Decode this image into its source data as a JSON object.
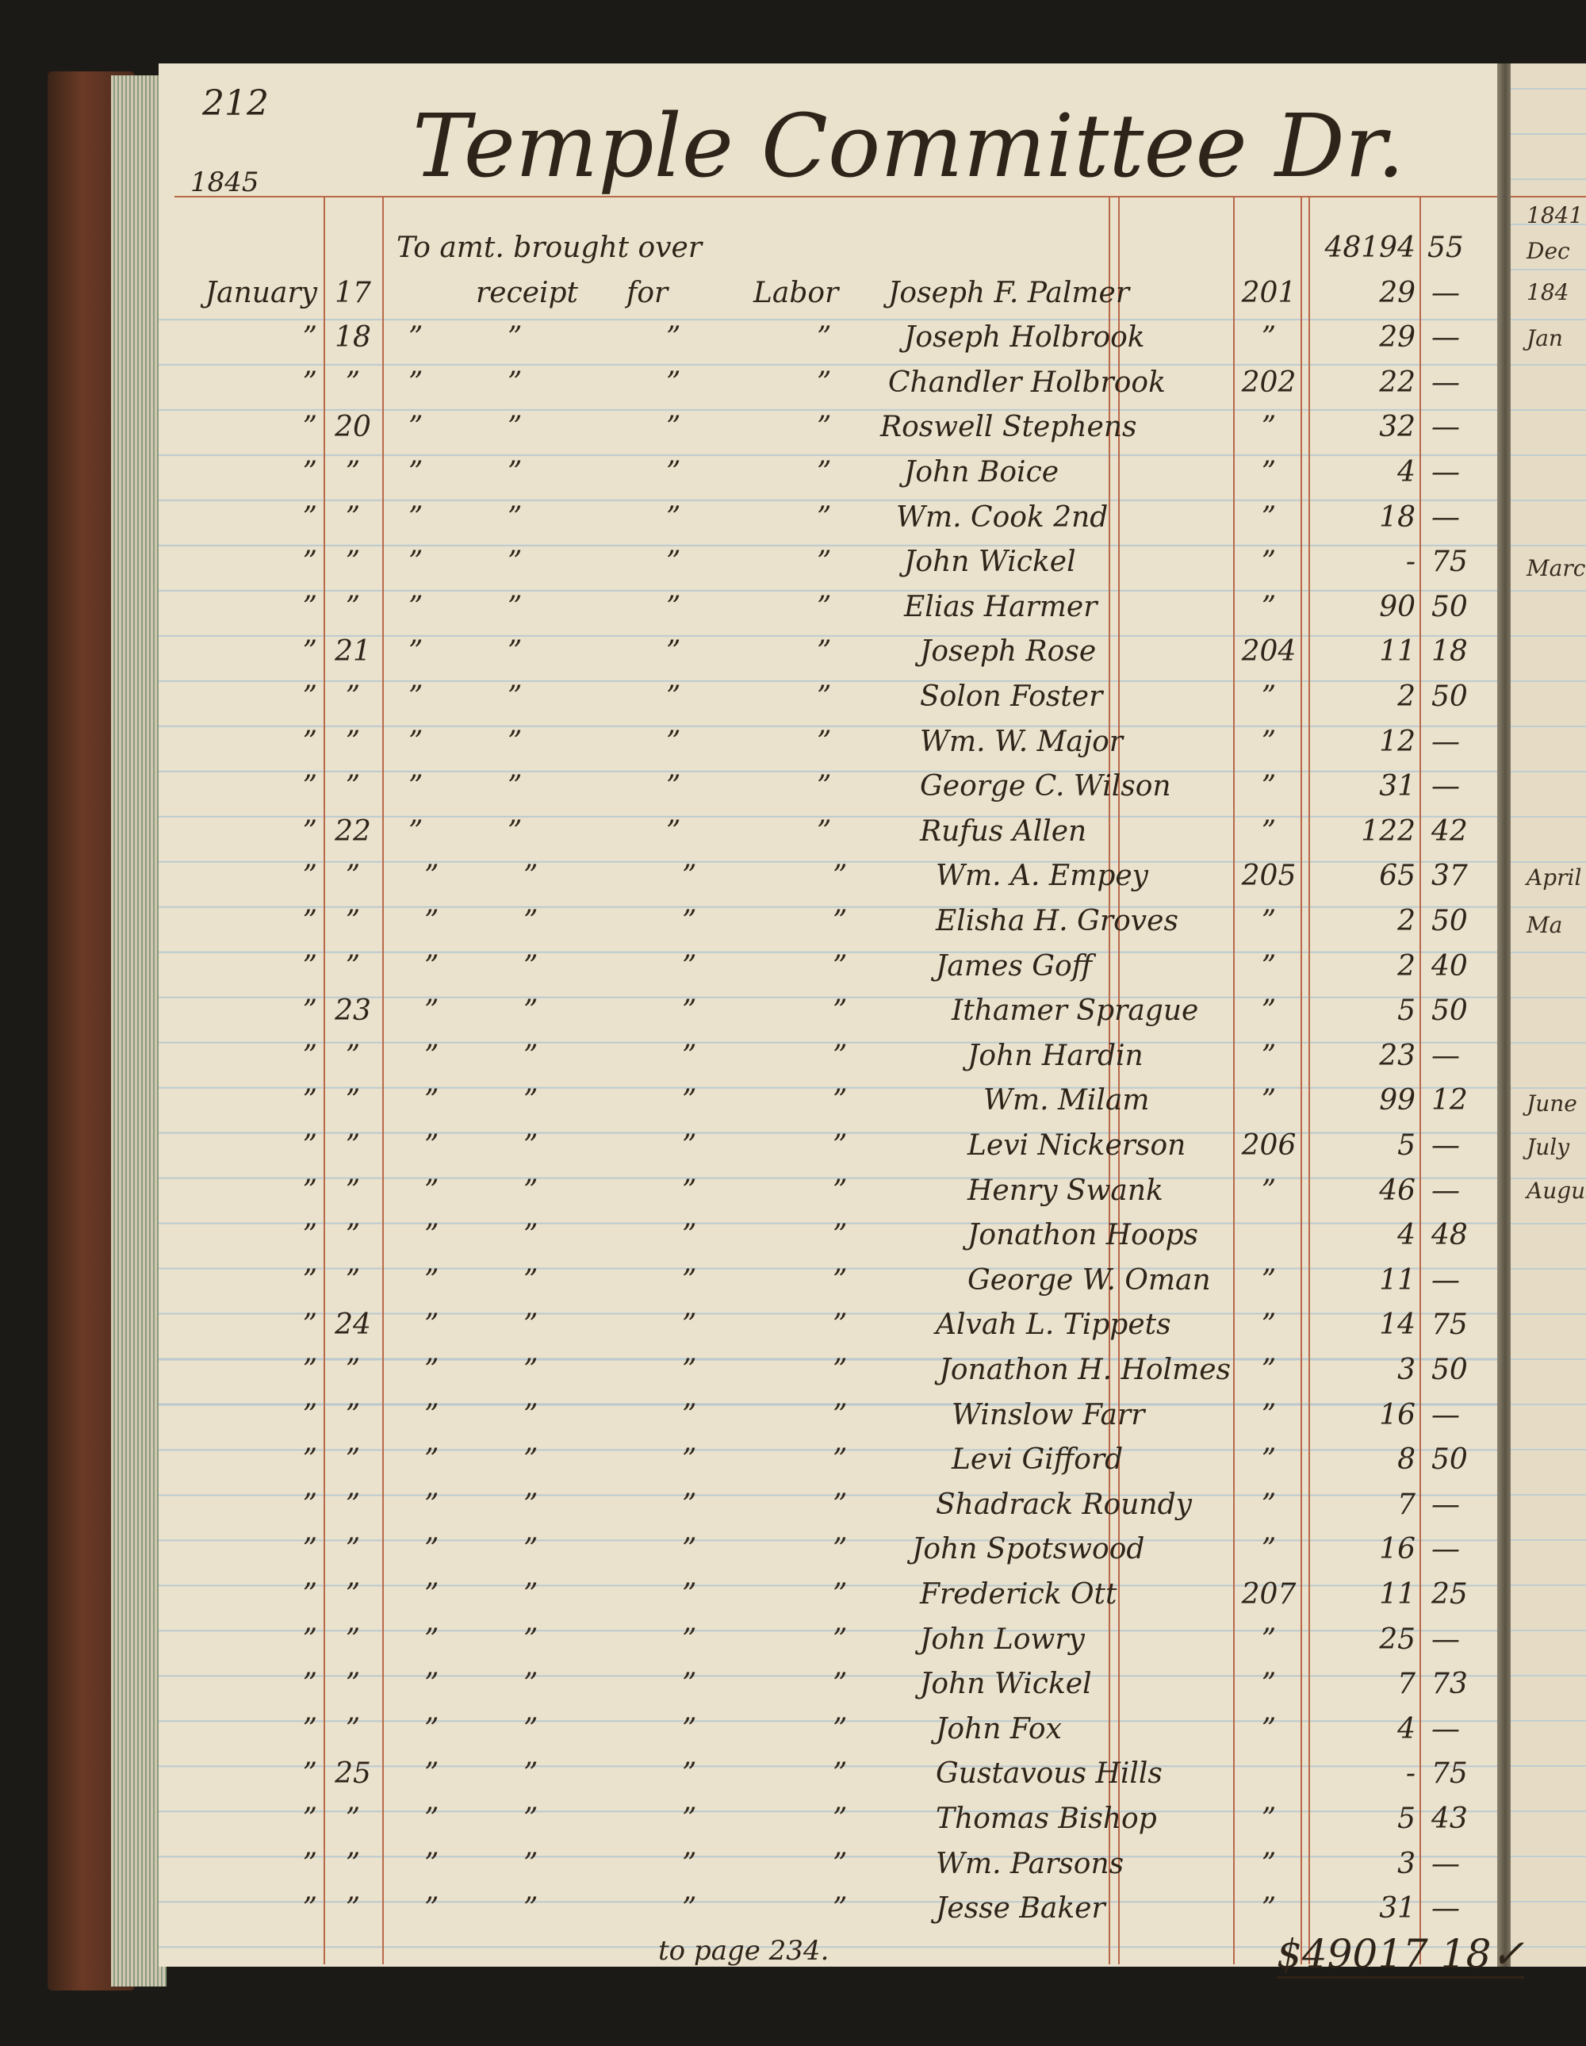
{
  "page": {
    "page_number": "212",
    "year": "1845",
    "title": "Temple Committee Dr.",
    "brought_over": {
      "description": "To amt. brought over",
      "dollars": "48194",
      "cents": "55"
    },
    "description_template": {
      "item": "receipt",
      "for": "for",
      "type": "Labor"
    },
    "ditto": "”",
    "entries": [
      {
        "month": "January",
        "day": "17",
        "name": "Joseph F. Palmer",
        "folio": "201",
        "dollars": "29",
        "cents": "—"
      },
      {
        "month": "”",
        "day": "18",
        "name": "Joseph Holbrook",
        "folio": "”",
        "dollars": "29",
        "cents": "—"
      },
      {
        "month": "”",
        "day": "”",
        "name": "Chandler Holbrook",
        "folio": "202",
        "dollars": "22",
        "cents": "—"
      },
      {
        "month": "”",
        "day": "20",
        "name": "Roswell Stephens",
        "folio": "”",
        "dollars": "32",
        "cents": "—"
      },
      {
        "month": "”",
        "day": "”",
        "name": "John Boice",
        "folio": "”",
        "dollars": "4",
        "cents": "—"
      },
      {
        "month": "”",
        "day": "”",
        "name": "Wm. Cook 2nd",
        "folio": "”",
        "dollars": "18",
        "cents": "—"
      },
      {
        "month": "”",
        "day": "”",
        "name": "John Wickel",
        "folio": "”",
        "dollars": "-",
        "cents": "75"
      },
      {
        "month": "”",
        "day": "”",
        "name": "Elias Harmer",
        "folio": "”",
        "dollars": "90",
        "cents": "50"
      },
      {
        "month": "”",
        "day": "21",
        "name": "Joseph Rose",
        "folio": "204",
        "dollars": "11",
        "cents": "18"
      },
      {
        "month": "”",
        "day": "”",
        "name": "Solon Foster",
        "folio": "”",
        "dollars": "2",
        "cents": "50"
      },
      {
        "month": "”",
        "day": "”",
        "name": "Wm. W. Major",
        "folio": "”",
        "dollars": "12",
        "cents": "—"
      },
      {
        "month": "”",
        "day": "”",
        "name": "George C. Wilson",
        "folio": "”",
        "dollars": "31",
        "cents": "—"
      },
      {
        "month": "”",
        "day": "22",
        "name": "Rufus Allen",
        "folio": "”",
        "dollars": "122",
        "cents": "42"
      },
      {
        "month": "”",
        "day": "”",
        "name": "Wm. A. Empey",
        "folio": "205",
        "dollars": "65",
        "cents": "37"
      },
      {
        "month": "”",
        "day": "”",
        "name": "Elisha H. Groves",
        "folio": "”",
        "dollars": "2",
        "cents": "50"
      },
      {
        "month": "”",
        "day": "”",
        "name": "James Goff",
        "folio": "”",
        "dollars": "2",
        "cents": "40"
      },
      {
        "month": "”",
        "day": "23",
        "name": "Ithamer Sprague",
        "folio": "”",
        "dollars": "5",
        "cents": "50"
      },
      {
        "month": "”",
        "day": "”",
        "name": "John Hardin",
        "folio": "”",
        "dollars": "23",
        "cents": "—"
      },
      {
        "month": "”",
        "day": "”",
        "name": "Wm. Milam",
        "folio": "”",
        "dollars": "99",
        "cents": "12"
      },
      {
        "month": "”",
        "day": "”",
        "name": "Levi Nickerson",
        "folio": "206",
        "dollars": "5",
        "cents": "—"
      },
      {
        "month": "”",
        "day": "”",
        "name": "Henry Swank",
        "folio": "”",
        "dollars": "46",
        "cents": "—"
      },
      {
        "month": "”",
        "day": "”",
        "name": "Jonathon Hoops",
        "folio": "",
        "dollars": "4",
        "cents": "48"
      },
      {
        "month": "”",
        "day": "”",
        "name": "George W. Oman",
        "folio": "”",
        "dollars": "11",
        "cents": "—"
      },
      {
        "month": "”",
        "day": "24",
        "name": "Alvah L. Tippets",
        "folio": "”",
        "dollars": "14",
        "cents": "75"
      },
      {
        "month": "”",
        "day": "”",
        "name": "Jonathon H. Holmes",
        "folio": "”",
        "dollars": "3",
        "cents": "50"
      },
      {
        "month": "”",
        "day": "”",
        "name": "Winslow Farr",
        "folio": "”",
        "dollars": "16",
        "cents": "—"
      },
      {
        "month": "”",
        "day": "”",
        "name": "Levi Gifford",
        "folio": "”",
        "dollars": "8",
        "cents": "50"
      },
      {
        "month": "”",
        "day": "”",
        "name": "Shadrack Roundy",
        "folio": "”",
        "dollars": "7",
        "cents": "—"
      },
      {
        "month": "”",
        "day": "”",
        "name": "John Spotswood",
        "folio": "”",
        "dollars": "16",
        "cents": "—"
      },
      {
        "month": "”",
        "day": "”",
        "name": "Frederick Ott",
        "folio": "207",
        "dollars": "11",
        "cents": "25"
      },
      {
        "month": "”",
        "day": "”",
        "name": "John Lowry",
        "folio": "”",
        "dollars": "25",
        "cents": "—"
      },
      {
        "month": "”",
        "day": "”",
        "name": "John Wickel",
        "folio": "”",
        "dollars": "7",
        "cents": "73"
      },
      {
        "month": "”",
        "day": "”",
        "name": "John Fox",
        "folio": "”",
        "dollars": "4",
        "cents": "—"
      },
      {
        "month": "”",
        "day": "25",
        "name": "Gustavous Hills",
        "folio": "",
        "dollars": "-",
        "cents": "75"
      },
      {
        "month": "”",
        "day": "”",
        "name": "Thomas Bishop",
        "folio": "”",
        "dollars": "5",
        "cents": "43"
      },
      {
        "month": "”",
        "day": "”",
        "name": "Wm. Parsons",
        "folio": "”",
        "dollars": "3",
        "cents": "—"
      },
      {
        "month": "”",
        "day": "”",
        "name": "Jesse Baker",
        "folio": "”",
        "dollars": "31",
        "cents": "—"
      }
    ],
    "footer_note": "to page 234.",
    "total": {
      "dollars": "$49017",
      "cents": "18✓"
    }
  },
  "facing_page": {
    "fragments": [
      "1841",
      "Dec",
      "184",
      "Jan",
      "Marc",
      "April",
      "Ma",
      "June",
      "July",
      "August"
    ]
  },
  "colors": {
    "paper": "#ebe2cd",
    "ink": "#2f2419",
    "rule_red": "#b8694a",
    "rule_blue": "#b9c9cf"
  }
}
